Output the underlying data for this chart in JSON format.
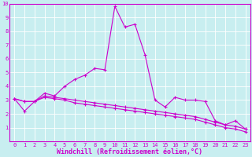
{
  "background_color": "#c8eef0",
  "grid_color": "#ffffff",
  "line_color": "#cc00cc",
  "spine_color": "#cc00cc",
  "xlabel": "Windchill (Refroidissement éolien,°C)",
  "xlim": [
    -0.5,
    23.5
  ],
  "ylim": [
    0,
    10
  ],
  "xticks": [
    0,
    1,
    2,
    3,
    4,
    5,
    6,
    7,
    8,
    9,
    10,
    11,
    12,
    13,
    14,
    15,
    16,
    17,
    18,
    19,
    20,
    21,
    22,
    23
  ],
  "yticks": [
    1,
    2,
    3,
    4,
    5,
    6,
    7,
    8,
    9,
    10
  ],
  "line1_x": [
    0,
    1,
    2,
    3,
    4,
    5,
    6,
    7,
    8,
    9,
    10,
    11,
    12,
    13,
    14,
    15,
    16,
    17,
    18,
    19,
    20,
    21,
    22,
    23
  ],
  "line1_y": [
    3.1,
    2.2,
    2.9,
    3.5,
    3.3,
    4.0,
    4.5,
    4.8,
    5.3,
    5.2,
    9.8,
    8.3,
    8.5,
    6.3,
    3.0,
    2.5,
    3.2,
    3.0,
    3.0,
    2.9,
    1.5,
    1.2,
    1.5,
    0.9
  ],
  "line2_x": [
    0,
    1,
    2,
    3,
    4,
    5,
    6,
    7,
    8,
    9,
    10,
    11,
    12,
    13,
    14,
    15,
    16,
    17,
    18,
    19,
    20,
    21,
    22,
    23
  ],
  "line2_y": [
    3.1,
    2.9,
    2.9,
    3.3,
    3.2,
    3.1,
    3.0,
    2.9,
    2.8,
    2.7,
    2.6,
    2.5,
    2.4,
    2.3,
    2.2,
    2.1,
    2.0,
    1.9,
    1.8,
    1.6,
    1.4,
    1.2,
    1.1,
    0.9
  ],
  "line3_x": [
    0,
    1,
    2,
    3,
    4,
    5,
    6,
    7,
    8,
    9,
    10,
    11,
    12,
    13,
    14,
    15,
    16,
    17,
    18,
    19,
    20,
    21,
    22,
    23
  ],
  "line3_y": [
    3.1,
    2.9,
    2.9,
    3.2,
    3.1,
    3.0,
    2.8,
    2.7,
    2.6,
    2.5,
    2.4,
    2.3,
    2.2,
    2.1,
    2.0,
    1.9,
    1.8,
    1.7,
    1.6,
    1.4,
    1.2,
    1.0,
    0.9,
    0.7
  ],
  "marker": "+",
  "markersize": 3,
  "markeredgewidth": 0.8,
  "linewidth": 0.8,
  "tick_fontsize": 5.0,
  "xlabel_fontsize": 6.0,
  "xlabel_fontweight": "bold"
}
